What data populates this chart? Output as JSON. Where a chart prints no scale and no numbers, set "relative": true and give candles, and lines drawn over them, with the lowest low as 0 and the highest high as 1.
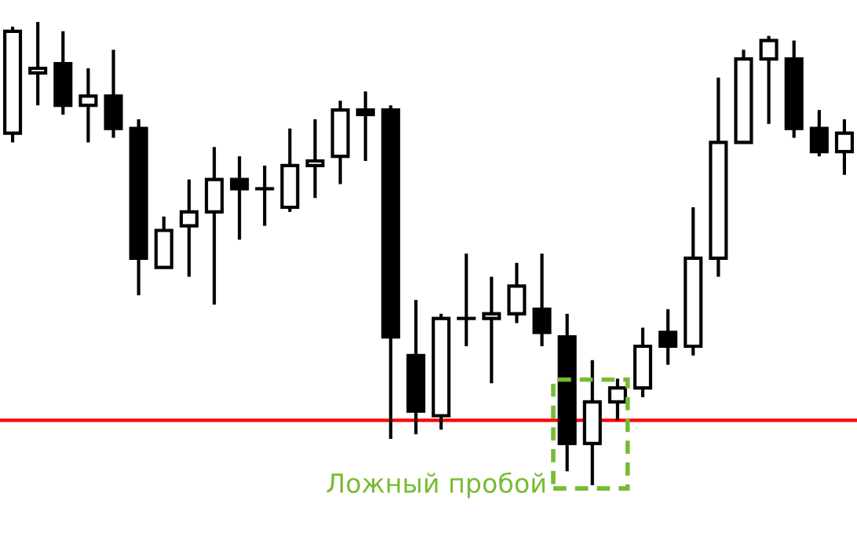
{
  "chart_data": {
    "type": "candlestick",
    "relative": true,
    "categories": [
      null,
      null,
      null,
      null,
      null,
      null,
      null,
      null,
      null,
      null,
      null,
      null,
      null,
      null,
      null,
      null,
      null,
      null,
      null,
      null,
      null,
      null,
      null,
      null,
      null,
      null,
      null,
      null,
      null,
      null,
      null,
      null,
      null,
      null
    ],
    "ohlc": [
      [
        0.76,
        0.99,
        0.74,
        0.98
      ],
      [
        0.89,
        1.0,
        0.82,
        0.9
      ],
      [
        0.91,
        0.98,
        0.8,
        0.82
      ],
      [
        0.82,
        0.9,
        0.74,
        0.84
      ],
      [
        0.84,
        0.94,
        0.75,
        0.77
      ],
      [
        0.77,
        0.79,
        0.41,
        0.49
      ],
      [
        0.47,
        0.58,
        0.47,
        0.55
      ],
      [
        0.56,
        0.66,
        0.45,
        0.59
      ],
      [
        0.59,
        0.73,
        0.39,
        0.66
      ],
      [
        0.66,
        0.71,
        0.53,
        0.64
      ],
      [
        0.64,
        0.69,
        0.56,
        0.64
      ],
      [
        0.6,
        0.77,
        0.59,
        0.69
      ],
      [
        0.69,
        0.79,
        0.62,
        0.7
      ],
      [
        0.71,
        0.83,
        0.65,
        0.81
      ],
      [
        0.81,
        0.85,
        0.7,
        0.8
      ],
      [
        0.81,
        0.82,
        0.1,
        0.32
      ],
      [
        0.28,
        0.4,
        0.11,
        0.16
      ],
      [
        0.15,
        0.37,
        0.12,
        0.36
      ],
      [
        0.36,
        0.5,
        0.3,
        0.36
      ],
      [
        0.36,
        0.45,
        0.22,
        0.37
      ],
      [
        0.37,
        0.48,
        0.35,
        0.43
      ],
      [
        0.38,
        0.5,
        0.3,
        0.33
      ],
      [
        0.32,
        0.37,
        0.03,
        0.09
      ],
      [
        0.09,
        0.27,
        0.0,
        0.18
      ],
      [
        0.18,
        0.23,
        0.14,
        0.21
      ],
      [
        0.21,
        0.34,
        0.19,
        0.3
      ],
      [
        0.33,
        0.38,
        0.26,
        0.3
      ],
      [
        0.3,
        0.6,
        0.28,
        0.49
      ],
      [
        0.49,
        0.88,
        0.45,
        0.74
      ],
      [
        0.74,
        0.94,
        0.74,
        0.92
      ],
      [
        0.92,
        0.97,
        0.78,
        0.96
      ],
      [
        0.92,
        0.96,
        0.75,
        0.77
      ],
      [
        0.77,
        0.81,
        0.71,
        0.72
      ],
      [
        0.72,
        0.79,
        0.67,
        0.76
      ]
    ],
    "ref_lines": [
      {
        "axis": "y",
        "value": 0.14,
        "color": "#ff0000",
        "line_style": "solid"
      }
    ],
    "annotations": [
      "Ложный пробой"
    ],
    "grid": false
  }
}
